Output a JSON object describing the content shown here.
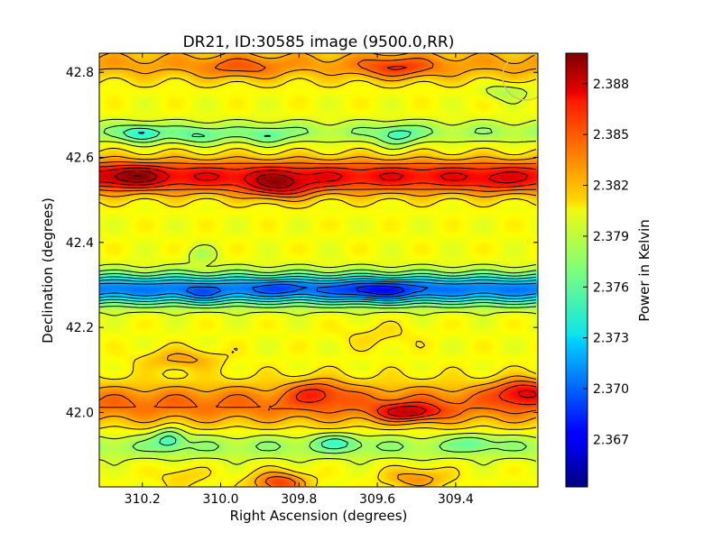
{
  "chart_data": {
    "type": "heatmap",
    "title": "DR21, ID:30585 image (9500.0,RR)",
    "xlabel": "Right Ascension (degrees)",
    "ylabel": "Declination (degrees)",
    "colorbar_label": "Power in Kelvin",
    "xlim": [
      310.31,
      309.19
    ],
    "ylim": [
      41.825,
      42.845
    ],
    "x_ticks": [
      310.2,
      310.0,
      309.8,
      309.6,
      309.4
    ],
    "x_tick_labels": [
      "310.2",
      "310.0",
      "309.8",
      "309.6",
      "309.4"
    ],
    "y_ticks": [
      42.0,
      42.2,
      42.4,
      42.6,
      42.8
    ],
    "y_tick_labels": [
      "42.0",
      "42.2",
      "42.4",
      "42.6",
      "42.8"
    ],
    "clim": [
      2.3642,
      2.3898
    ],
    "colorbar_ticks": [
      2.367,
      2.37,
      2.373,
      2.376,
      2.379,
      2.382,
      2.385,
      2.388
    ],
    "colorbar_tick_labels": [
      "2.367",
      "2.370",
      "2.373",
      "2.376",
      "2.379",
      "2.382",
      "2.385",
      "2.388"
    ],
    "colormap": "jet",
    "contours": true,
    "beam_marker": {
      "ra": 309.22,
      "dec": 42.79,
      "color": "#d7c84a"
    },
    "bands": [
      {
        "dec": 42.555,
        "amp": 0.0065,
        "width": 0.04
      },
      {
        "dec": 42.29,
        "amp": -0.0095,
        "width": 0.035
      },
      {
        "dec": 42.02,
        "amp": 0.0038,
        "width": 0.05
      },
      {
        "dec": 42.82,
        "amp": 0.0025,
        "width": 0.04
      },
      {
        "dec": 42.66,
        "amp": -0.002,
        "width": 0.025
      },
      {
        "dec": 41.92,
        "amp": -0.0022,
        "width": 0.03
      }
    ],
    "blobs": [
      {
        "ra": 309.85,
        "dec": 42.53,
        "amp": 0.004,
        "sx": 0.08,
        "sy": 0.03
      },
      {
        "ra": 310.23,
        "dec": 42.555,
        "amp": 0.003,
        "sx": 0.08,
        "sy": 0.025
      },
      {
        "ra": 309.3,
        "dec": 42.54,
        "amp": 0.001,
        "sx": 0.06,
        "sy": 0.025
      },
      {
        "ra": 309.6,
        "dec": 42.285,
        "amp": -0.003,
        "sx": 0.1,
        "sy": 0.025
      },
      {
        "ra": 310.05,
        "dec": 42.275,
        "amp": -0.0015,
        "sx": 0.05,
        "sy": 0.02
      },
      {
        "ra": 309.85,
        "dec": 42.295,
        "amp": -0.0015,
        "sx": 0.06,
        "sy": 0.02
      },
      {
        "ra": 309.52,
        "dec": 42.0,
        "amp": 0.005,
        "sx": 0.08,
        "sy": 0.02
      },
      {
        "ra": 309.23,
        "dec": 42.05,
        "amp": 0.0045,
        "sx": 0.07,
        "sy": 0.03
      },
      {
        "ra": 309.75,
        "dec": 42.05,
        "amp": 0.003,
        "sx": 0.07,
        "sy": 0.03
      },
      {
        "ra": 310.1,
        "dec": 42.125,
        "amp": 0.0025,
        "sx": 0.1,
        "sy": 0.025
      },
      {
        "ra": 309.85,
        "dec": 41.835,
        "amp": 0.005,
        "sx": 0.07,
        "sy": 0.025
      },
      {
        "ra": 309.5,
        "dec": 41.845,
        "amp": 0.003,
        "sx": 0.08,
        "sy": 0.025
      },
      {
        "ra": 310.1,
        "dec": 41.85,
        "amp": 0.0015,
        "sx": 0.06,
        "sy": 0.025
      },
      {
        "ra": 310.13,
        "dec": 41.94,
        "amp": -0.0035,
        "sx": 0.04,
        "sy": 0.025
      },
      {
        "ra": 309.7,
        "dec": 41.93,
        "amp": -0.0025,
        "sx": 0.06,
        "sy": 0.02
      },
      {
        "ra": 309.35,
        "dec": 41.93,
        "amp": -0.002,
        "sx": 0.05,
        "sy": 0.02
      },
      {
        "ra": 310.2,
        "dec": 42.655,
        "amp": -0.004,
        "sx": 0.05,
        "sy": 0.02
      },
      {
        "ra": 310.05,
        "dec": 42.65,
        "amp": -0.0025,
        "sx": 0.06,
        "sy": 0.02
      },
      {
        "ra": 309.88,
        "dec": 42.65,
        "amp": -0.0025,
        "sx": 0.05,
        "sy": 0.02
      },
      {
        "ra": 309.55,
        "dec": 42.65,
        "amp": -0.003,
        "sx": 0.05,
        "sy": 0.025
      },
      {
        "ra": 309.27,
        "dec": 42.755,
        "amp": -0.002,
        "sx": 0.06,
        "sy": 0.02
      },
      {
        "ra": 309.55,
        "dec": 42.81,
        "amp": 0.003,
        "sx": 0.1,
        "sy": 0.025
      },
      {
        "ra": 309.95,
        "dec": 42.81,
        "amp": 0.002,
        "sx": 0.1,
        "sy": 0.025
      },
      {
        "ra": 310.05,
        "dec": 42.37,
        "amp": -0.0015,
        "sx": 0.04,
        "sy": 0.02
      },
      {
        "ra": 309.6,
        "dec": 42.18,
        "amp": 0.001,
        "sx": 0.1,
        "sy": 0.03
      }
    ]
  }
}
